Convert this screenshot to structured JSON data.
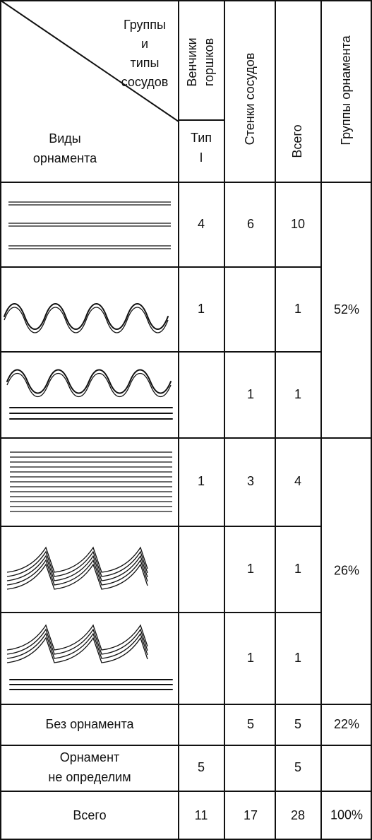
{
  "header": {
    "corner_top": [
      "Группы",
      "и",
      "типы",
      "сосудов"
    ],
    "corner_bottom": [
      "Виды",
      "орнамента"
    ],
    "rims": [
      "Венчики",
      "горшков"
    ],
    "rims_type": [
      "Тип",
      "I"
    ],
    "walls": "Стенки сосудов",
    "total": "Всего",
    "groups": "Группы орнамента"
  },
  "rows": [
    {
      "rims": 4,
      "walls": 6,
      "total": 10
    },
    {
      "rims": 1,
      "total": 1
    },
    {
      "walls": 1,
      "total": 1
    },
    {
      "rims": 1,
      "walls": 3,
      "total": 4
    },
    {
      "walls": 1,
      "total": 1
    },
    {
      "walls": 1,
      "total": 1
    },
    {
      "label": "Без орнамента",
      "walls": 5,
      "total": 5
    },
    {
      "label": [
        "Орнамент",
        "не определим"
      ],
      "rims": 5,
      "total": 5
    },
    {
      "label": "Всего",
      "rims": 11,
      "walls": 17,
      "total": 28
    }
  ],
  "groups": [
    "52%",
    "26%",
    "22%",
    "100%"
  ]
}
